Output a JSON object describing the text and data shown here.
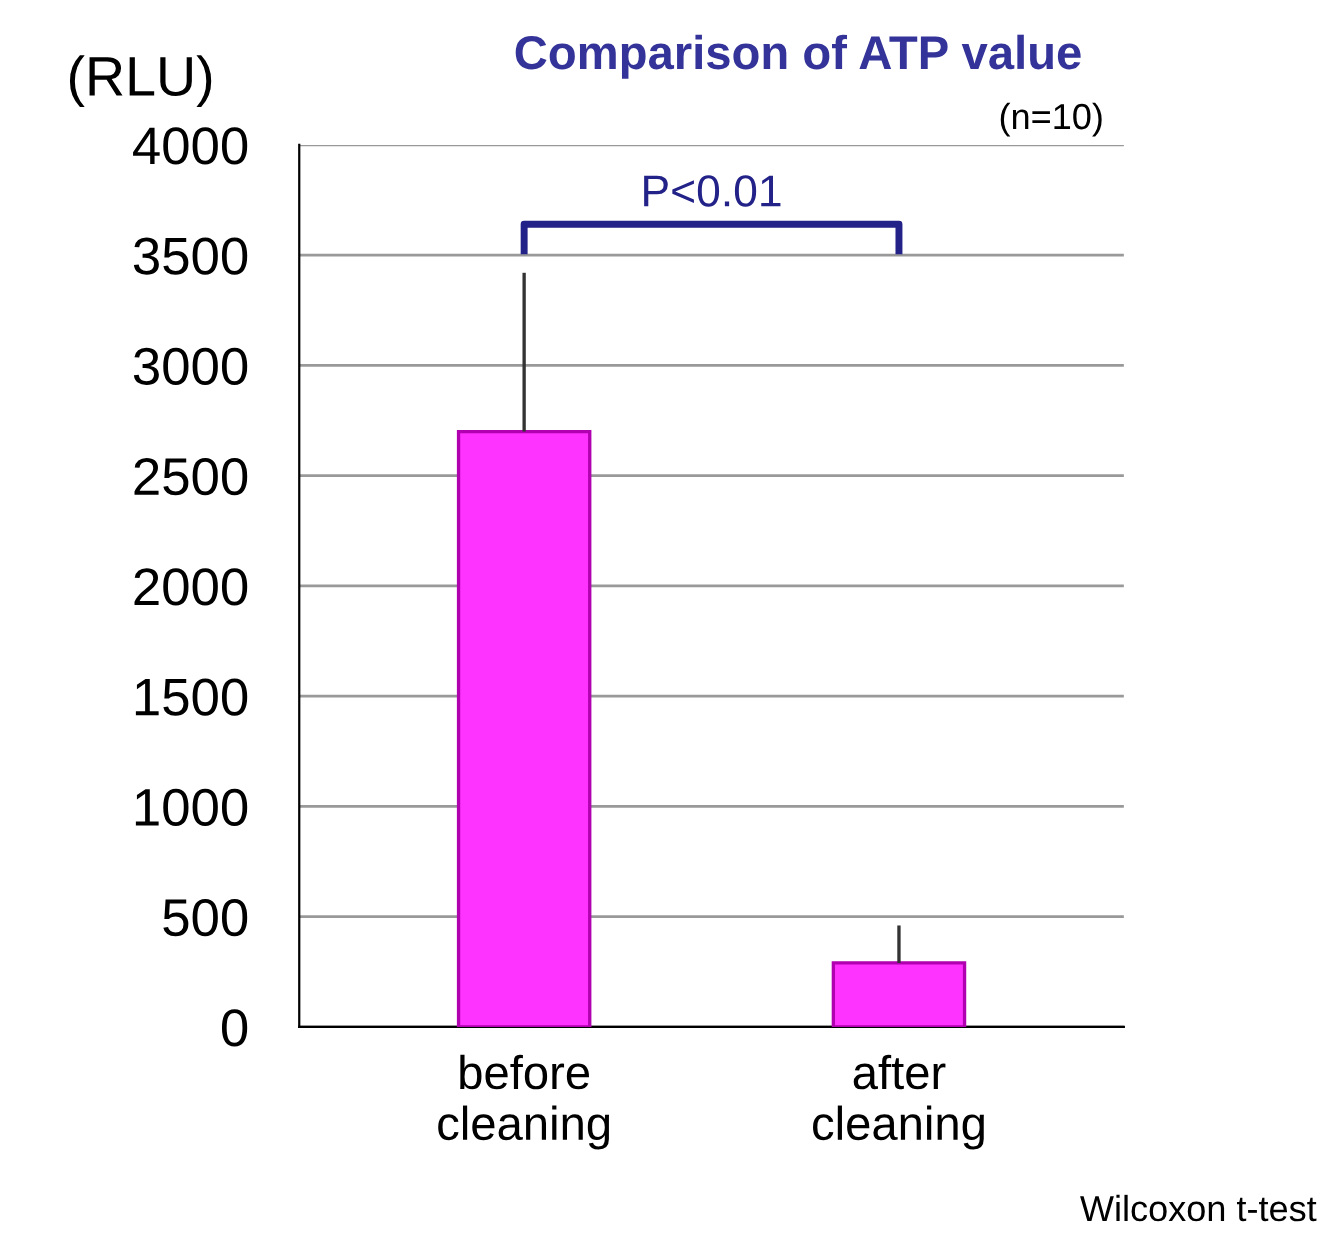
{
  "chart_data": {
    "type": "bar",
    "title": "Comparison of ATP value",
    "subtitle": "(n=10)",
    "ylabel": "(RLU)",
    "categories": [
      "before\ncleaning",
      "after\ncleaning"
    ],
    "values": [
      2700,
      290
    ],
    "errors": [
      [
        2700,
        3420
      ],
      [
        290,
        460
      ]
    ],
    "color": "#ff33ff",
    "ylim": [
      0,
      4000
    ],
    "yticks": [
      0,
      500,
      1000,
      1500,
      2000,
      2500,
      3000,
      3500,
      4000
    ],
    "grid": "y",
    "annotations": [
      "P<0.01",
      "Wilcoxon t-test"
    ]
  }
}
